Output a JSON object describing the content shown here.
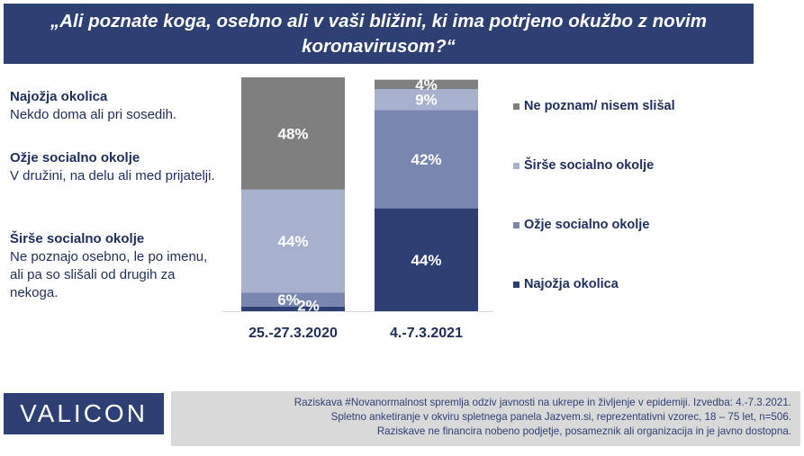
{
  "title": "„Ali poznate koga, osebno ali v vaši bližini, ki ima potrjeno okužbo z novim koronavirusom?“",
  "definitions": [
    {
      "heading": "Najožja okolica",
      "text": "Nekdo doma ali pri sosedih."
    },
    {
      "heading": "Ožje socialno okolje",
      "text": "V družini, na delu ali med prijatelji."
    },
    {
      "heading": "Širše socialno okolje",
      "text": "Ne poznajo osebno, le po imenu, ali pa so slišali od drugih za nekoga."
    }
  ],
  "chart_data": {
    "type": "bar",
    "stacked": true,
    "percent_scale": true,
    "categories": [
      "25.-27.3.2020",
      "4.-7.3.2021"
    ],
    "series": [
      {
        "name": "Najožja okolica",
        "values": [
          2,
          44
        ],
        "color": "#2e3f74",
        "label_color": "#ffffff"
      },
      {
        "name": "Ožje socialno okolje",
        "values": [
          6,
          42
        ],
        "color": "#7986b0",
        "label_color": "#ffffff"
      },
      {
        "name": "Širše socialno okolje",
        "values": [
          44,
          9
        ],
        "color": "#a7b1cd",
        "label_color": "#ffffff"
      },
      {
        "name": "Ne poznam/ nisem slišal",
        "values": [
          48,
          4
        ],
        "color": "#7f7f7f",
        "label_color": "#ffffff"
      }
    ],
    "data_labels": [
      [
        "2%",
        "44%"
      ],
      [
        "6%",
        "42%"
      ],
      [
        "44%",
        "9%"
      ],
      [
        "48%",
        "4%"
      ]
    ],
    "legend_order": [
      "Ne poznam/ nisem slišal",
      "Širše socialno okolje",
      "Ožje socialno okolje",
      "Najožja okolica"
    ],
    "legend_position": "right"
  },
  "logo": "VALICON",
  "footer": [
    "Raziskava #Novanormalnost spremlja odziv javnosti na ukrepe in življenje v epidemiji. Izvedba: 4.-7.3.2021.",
    "Spletno anketiranje v okviru spletnega panela Jazvem.si, reprezentativni vzorec, 18 – 75 let, n=506.",
    "Raziskave ne financira nobeno podjetje, posameznik ali organizacija in je javno dostopna."
  ]
}
